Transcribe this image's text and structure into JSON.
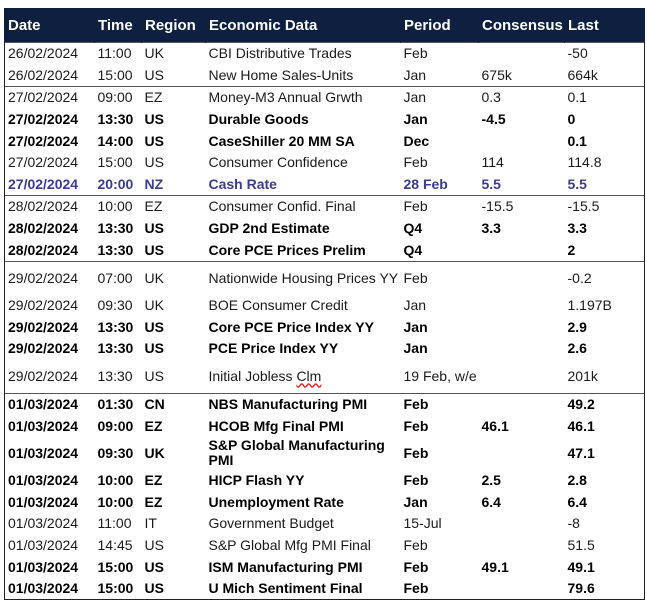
{
  "columns": [
    "Date",
    "Time",
    "Region",
    "Economic Data",
    "Period",
    "Consensus",
    "Last"
  ],
  "rows": [
    {
      "date": "26/02/2024",
      "time": "11:00",
      "region": "UK",
      "data": "CBI Distributive Trades",
      "period": "Feb",
      "consensus": "",
      "last": "-50",
      "style": "normal",
      "group_start": true
    },
    {
      "date": "26/02/2024",
      "time": "15:00",
      "region": "US",
      "data": "New Home Sales-Units",
      "period": "Jan",
      "consensus": "675k",
      "last": "664k",
      "style": "normal"
    },
    {
      "date": "27/02/2024",
      "time": "09:00",
      "region": "EZ",
      "data": "Money-M3 Annual Grwth",
      "period": "Jan",
      "consensus": "0.3",
      "last": "0.1",
      "style": "normal",
      "group_start": true
    },
    {
      "date": "27/02/2024",
      "time": "13:30",
      "region": "US",
      "data": "Durable Goods",
      "period": "Jan",
      "consensus": "-4.5",
      "last": "0",
      "style": "bold"
    },
    {
      "date": "27/02/2024",
      "time": "14:00",
      "region": "US",
      "data": "CaseShiller 20 MM SA",
      "period": "Dec",
      "consensus": "",
      "last": "0.1",
      "style": "bold"
    },
    {
      "date": "27/02/2024",
      "time": "15:00",
      "region": "US",
      "data": "Consumer Confidence",
      "period": "Feb",
      "consensus": "114",
      "last": "114.8",
      "style": "normal"
    },
    {
      "date": "27/02/2024",
      "time": "20:00",
      "region": "NZ",
      "data": "Cash Rate",
      "period": "28 Feb",
      "consensus": "5.5",
      "last": "5.5",
      "style": "highlight"
    },
    {
      "date": "28/02/2024",
      "time": "10:00",
      "region": "EZ",
      "data": "Consumer Confid. Final",
      "period": "Feb",
      "consensus": "-15.5",
      "last": "-15.5",
      "style": "normal",
      "group_start": true
    },
    {
      "date": "28/02/2024",
      "time": "13:30",
      "region": "US",
      "data": "GDP 2nd Estimate",
      "period": "Q4",
      "consensus": "3.3",
      "last": "3.3",
      "style": "bold"
    },
    {
      "date": "28/02/2024",
      "time": "13:30",
      "region": "US",
      "data": "Core PCE Prices Prelim",
      "period": "Q4",
      "consensus": "",
      "last": "2",
      "style": "bold"
    },
    {
      "date": "29/02/2024",
      "time": "07:00",
      "region": "UK",
      "data": "Nationwide Housing Prices YY",
      "period": "Feb",
      "consensus": "",
      "last": "-0.2",
      "style": "normal",
      "group_start": true,
      "tall": true
    },
    {
      "date": "29/02/2024",
      "time": "09:30",
      "region": "UK",
      "data": "BOE Consumer Credit",
      "period": "Jan",
      "consensus": "",
      "last": "1.197B",
      "style": "normal"
    },
    {
      "date": "29/02/2024",
      "time": "13:30",
      "region": "US",
      "data": "Core PCE Price Index YY",
      "period": "Jan",
      "consensus": "",
      "last": "2.9",
      "style": "bold"
    },
    {
      "date": "29/02/2024",
      "time": "13:30",
      "region": "US",
      "data": "PCE Price Index YY",
      "period": "Jan",
      "consensus": "",
      "last": "2.6",
      "style": "bold"
    },
    {
      "date": "29/02/2024",
      "time": "13:30",
      "region": "US",
      "data": "Initial Jobless Clm",
      "period": "19 Feb, w/e",
      "consensus": "",
      "last": "201k",
      "style": "normal",
      "tall": true,
      "squiggle": "Clm"
    },
    {
      "date": "01/03/2024",
      "time": "01:30",
      "region": "CN",
      "data": "NBS Manufacturing PMI",
      "period": "Feb",
      "consensus": "",
      "last": "49.2",
      "style": "bold",
      "group_start": true
    },
    {
      "date": "01/03/2024",
      "time": "09:00",
      "region": "EZ",
      "data": "HCOB Mfg Final PMI",
      "period": "Feb",
      "consensus": "46.1",
      "last": "46.1",
      "style": "bold"
    },
    {
      "date": "01/03/2024",
      "time": "09:30",
      "region": "UK",
      "data": "S&P Global Manufacturing PMI",
      "period": "Feb",
      "consensus": "",
      "last": "47.1",
      "style": "bold",
      "tall": true
    },
    {
      "date": "01/03/2024",
      "time": "10:00",
      "region": "EZ",
      "data": "HICP Flash YY",
      "period": "Feb",
      "consensus": "2.5",
      "last": "2.8",
      "style": "bold"
    },
    {
      "date": "01/03/2024",
      "time": "10:00",
      "region": "EZ",
      "data": "Unemployment Rate",
      "period": "Jan",
      "consensus": "6.4",
      "last": "6.4",
      "style": "bold"
    },
    {
      "date": "01/03/2024",
      "time": "11:00",
      "region": "IT",
      "data": "Government Budget",
      "period": "15-Jul",
      "consensus": "",
      "last": "-8",
      "style": "normal"
    },
    {
      "date": "01/03/2024",
      "time": "14:45",
      "region": "US",
      "data": "S&P Global Mfg PMI Final",
      "period": "Feb",
      "consensus": "",
      "last": "51.5",
      "style": "normal"
    },
    {
      "date": "01/03/2024",
      "time": "15:00",
      "region": "US",
      "data": "ISM Manufacturing PMI",
      "period": "Feb",
      "consensus": "49.1",
      "last": "49.1",
      "style": "bold"
    },
    {
      "date": "01/03/2024",
      "time": "15:00",
      "region": "US",
      "data": "U Mich Sentiment Final",
      "period": "Feb",
      "consensus": "",
      "last": "79.6",
      "style": "bold"
    }
  ],
  "colors": {
    "header_bg": "#0f1f3f",
    "header_text": "#ffffff",
    "highlight_text": "#3b3b8f",
    "squiggle": "#d22222"
  }
}
